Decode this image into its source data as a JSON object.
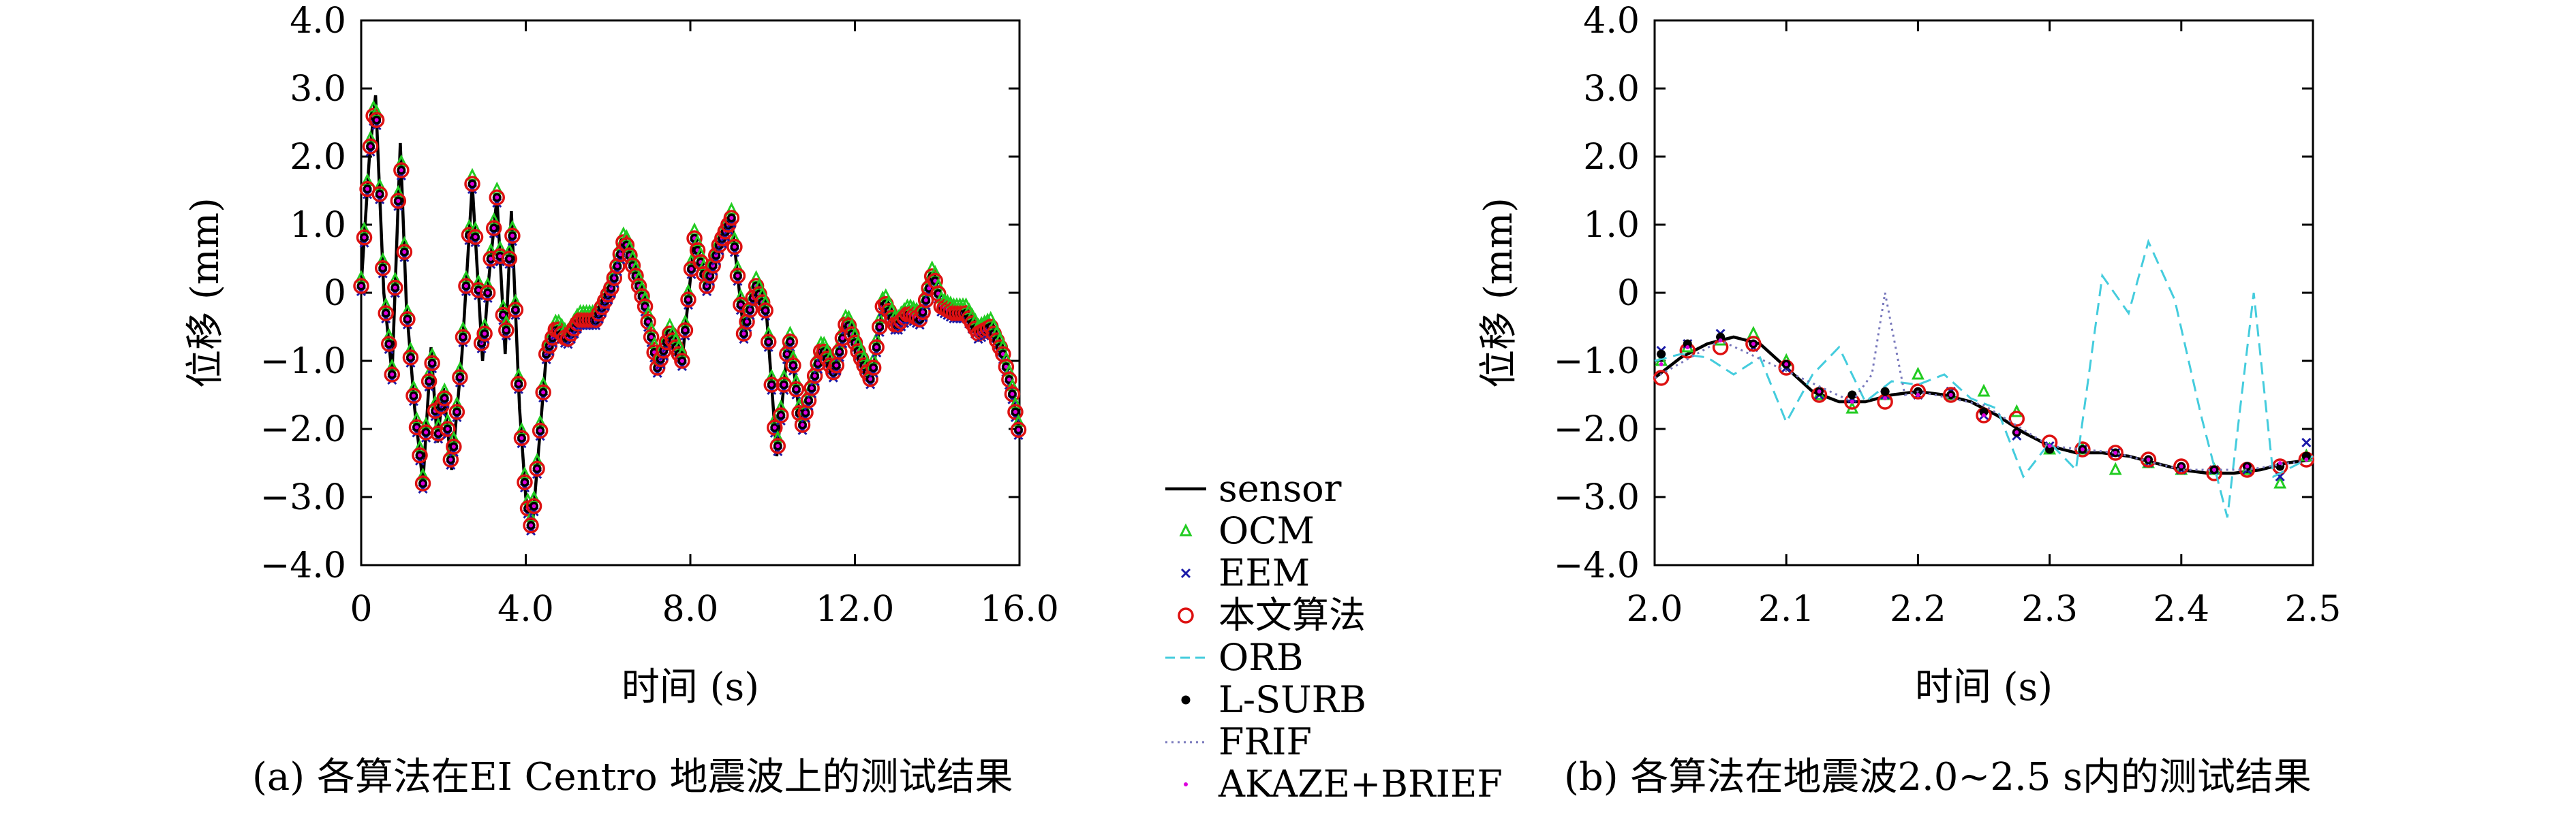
{
  "captions": {
    "a": "(a) 各算法在EI Centro 地震波上的测试结果",
    "b": "(b) 各算法在地震波2.0~2.5 s内的测试结果"
  },
  "legend": [
    {
      "label": "sensor",
      "style": "line",
      "color": "#000000"
    },
    {
      "label": "OCM",
      "style": "triangle",
      "color": "#22cc22"
    },
    {
      "label": "EEM",
      "style": "cross",
      "color": "#1a1aa8"
    },
    {
      "label": "本文算法",
      "style": "circle",
      "color": "#dd1111"
    },
    {
      "label": "ORB",
      "style": "dash",
      "color": "#44ccdd"
    },
    {
      "label": "L-SURB",
      "style": "dot",
      "color": "#000000"
    },
    {
      "label": "FRIF",
      "style": "dotted",
      "color": "#7777bb"
    },
    {
      "label": "AKAZE+BRIEF",
      "style": "smalldot",
      "color": "#dd00dd"
    }
  ],
  "chart_data": [
    {
      "type": "line",
      "panel": "a",
      "xlabel": "时间 (s)",
      "ylabel": "位移 (mm)",
      "xlim": [
        0,
        16
      ],
      "ylim": [
        -4,
        4
      ],
      "xticks": [
        "0",
        "4.0",
        "8.0",
        "12.0",
        "16.0"
      ],
      "xtick_values": [
        0,
        4,
        8,
        12,
        16
      ],
      "yticks": [
        "4.0",
        "3.0",
        "2.0",
        "1.0",
        "0",
        "−1.0",
        "−2.0",
        "−3.0",
        "−4.0"
      ],
      "ytick_values": [
        4,
        3,
        2,
        1,
        0,
        -1,
        -2,
        -3,
        -4
      ],
      "series": [
        {
          "name": "sensor",
          "x": [
            0,
            0.2,
            0.35,
            0.55,
            0.75,
            0.95,
            1.1,
            1.3,
            1.5,
            1.7,
            1.85,
            2.0,
            2.2,
            2.45,
            2.7,
            2.95,
            3.1,
            3.3,
            3.5,
            3.65,
            3.85,
            4.0,
            4.15,
            4.3,
            4.5,
            4.75,
            5.0,
            5.3,
            5.7,
            6.1,
            6.4,
            6.6,
            6.9,
            7.2,
            7.5,
            7.8,
            8.1,
            8.4,
            8.7,
            9.0,
            9.3,
            9.6,
            9.85,
            10.1,
            10.4,
            10.7,
            10.95,
            11.2,
            11.5,
            11.8,
            12.1,
            12.4,
            12.7,
            13.0,
            13.3,
            13.6,
            13.9,
            14.1,
            14.4,
            14.7,
            15.0,
            15.3,
            15.6,
            15.8,
            16.0
          ],
          "y": [
            0.1,
            2.0,
            2.9,
            0.0,
            -1.2,
            2.2,
            -0.2,
            -1.7,
            -2.8,
            -0.8,
            -2.2,
            -1.4,
            -2.6,
            -0.9,
            1.6,
            -1.0,
            0.2,
            1.4,
            -0.9,
            1.2,
            -1.7,
            -3.0,
            -3.5,
            -2.4,
            -0.9,
            -0.5,
            -0.7,
            -0.4,
            -0.4,
            0.1,
            0.8,
            0.4,
            -0.2,
            -1.1,
            -0.6,
            -1.0,
            0.8,
            0.1,
            0.7,
            1.1,
            -0.6,
            0.1,
            -0.3,
            -2.4,
            -0.6,
            -2.0,
            -1.4,
            -0.8,
            -1.2,
            -0.4,
            -0.9,
            -1.3,
            -0.1,
            -0.5,
            -0.3,
            -0.4,
            0.3,
            -0.2,
            -0.3,
            -0.3,
            -0.6,
            -0.5,
            -0.9,
            -1.4,
            -2.1
          ]
        }
      ]
    },
    {
      "type": "line",
      "panel": "b",
      "xlabel": "时间 (s)",
      "ylabel": "位移 (mm)",
      "xlim": [
        2.0,
        2.5
      ],
      "ylim": [
        -4,
        4
      ],
      "xticks": [
        "2.0",
        "2.1",
        "2.2",
        "2.3",
        "2.4",
        "2.5"
      ],
      "xtick_values": [
        2.0,
        2.1,
        2.2,
        2.3,
        2.4,
        2.5
      ],
      "yticks": [
        "4.0",
        "3.0",
        "2.0",
        "1.0",
        "0",
        "−1.0",
        "−2.0",
        "−3.0",
        "−4.0"
      ],
      "ytick_values": [
        4,
        3,
        2,
        1,
        0,
        -1,
        -2,
        -3,
        -4
      ],
      "series": [
        {
          "name": "sensor",
          "x": [
            2.0,
            2.02,
            2.04,
            2.06,
            2.08,
            2.1,
            2.12,
            2.14,
            2.16,
            2.18,
            2.2,
            2.22,
            2.24,
            2.26,
            2.28,
            2.3,
            2.32,
            2.34,
            2.36,
            2.38,
            2.4,
            2.42,
            2.44,
            2.46,
            2.48,
            2.5
          ],
          "y": [
            -1.25,
            -0.95,
            -0.75,
            -0.65,
            -0.75,
            -1.1,
            -1.45,
            -1.6,
            -1.6,
            -1.5,
            -1.45,
            -1.5,
            -1.6,
            -1.8,
            -2.05,
            -2.25,
            -2.35,
            -2.35,
            -2.4,
            -2.5,
            -2.6,
            -2.65,
            -2.65,
            -2.6,
            -2.5,
            -2.45
          ]
        },
        {
          "name": "OCM",
          "x": [
            2.005,
            2.025,
            2.05,
            2.075,
            2.1,
            2.125,
            2.15,
            2.175,
            2.2,
            2.225,
            2.25,
            2.275,
            2.3,
            2.325,
            2.35,
            2.375,
            2.4,
            2.425,
            2.45,
            2.475,
            2.495
          ],
          "y": [
            -1.0,
            -0.8,
            -0.7,
            -0.6,
            -1.0,
            -1.5,
            -1.7,
            -1.5,
            -1.2,
            -1.5,
            -1.45,
            -1.75,
            -2.3,
            -2.3,
            -2.6,
            -2.5,
            -2.6,
            -2.6,
            -2.6,
            -2.8,
            -2.4
          ]
        },
        {
          "name": "EEM",
          "x": [
            2.005,
            2.025,
            2.05,
            2.075,
            2.1,
            2.125,
            2.15,
            2.175,
            2.2,
            2.225,
            2.25,
            2.275,
            2.3,
            2.325,
            2.35,
            2.375,
            2.4,
            2.425,
            2.45,
            2.475,
            2.495
          ],
          "y": [
            -0.85,
            -0.75,
            -0.6,
            -0.8,
            -1.1,
            -1.5,
            -1.55,
            -1.5,
            -1.5,
            -1.45,
            -1.8,
            -2.1,
            -2.25,
            -2.3,
            -2.35,
            -2.5,
            -2.6,
            -2.6,
            -2.6,
            -2.7,
            -2.2
          ]
        },
        {
          "name": "本文算法",
          "x": [
            2.005,
            2.025,
            2.05,
            2.075,
            2.1,
            2.125,
            2.15,
            2.175,
            2.2,
            2.225,
            2.25,
            2.275,
            2.3,
            2.325,
            2.35,
            2.375,
            2.4,
            2.425,
            2.45,
            2.475,
            2.495
          ],
          "y": [
            -1.25,
            -0.85,
            -0.8,
            -0.75,
            -1.1,
            -1.5,
            -1.6,
            -1.6,
            -1.45,
            -1.5,
            -1.8,
            -1.85,
            -2.2,
            -2.3,
            -2.35,
            -2.45,
            -2.55,
            -2.65,
            -2.6,
            -2.55,
            -2.45
          ]
        },
        {
          "name": "ORB",
          "x": [
            2.0,
            2.02,
            2.04,
            2.06,
            2.08,
            2.1,
            2.12,
            2.14,
            2.16,
            2.18,
            2.2,
            2.22,
            2.24,
            2.26,
            2.28,
            2.3,
            2.32,
            2.34,
            2.36,
            2.375,
            2.395,
            2.415,
            2.435,
            2.455,
            2.47,
            2.5
          ],
          "y": [
            -1.0,
            -0.9,
            -0.95,
            -1.2,
            -0.95,
            -1.9,
            -1.2,
            -0.8,
            -1.6,
            -1.3,
            -1.35,
            -1.2,
            -1.55,
            -1.7,
            -2.7,
            -2.2,
            -2.6,
            0.25,
            -0.3,
            0.75,
            -0.1,
            -1.8,
            -3.3,
            0.0,
            -2.7,
            -2.4
          ]
        },
        {
          "name": "L-SURB",
          "x": [
            2.005,
            2.025,
            2.05,
            2.075,
            2.1,
            2.125,
            2.15,
            2.175,
            2.2,
            2.225,
            2.25,
            2.275,
            2.3,
            2.325,
            2.35,
            2.375,
            2.4,
            2.425,
            2.45,
            2.475,
            2.495
          ],
          "y": [
            -0.9,
            -0.75,
            -0.65,
            -0.75,
            -1.05,
            -1.45,
            -1.5,
            -1.45,
            -1.45,
            -1.5,
            -1.75,
            -2.05,
            -2.3,
            -2.3,
            -2.35,
            -2.45,
            -2.55,
            -2.6,
            -2.55,
            -2.55,
            -2.4
          ]
        },
        {
          "name": "FRIF",
          "x": [
            2.0,
            2.05,
            2.1,
            2.15,
            2.165,
            2.175,
            2.19,
            2.2,
            2.25,
            2.3,
            2.35,
            2.4,
            2.45,
            2.5
          ],
          "y": [
            -1.25,
            -0.7,
            -1.15,
            -1.6,
            -1.2,
            0.0,
            -1.5,
            -1.45,
            -1.65,
            -2.25,
            -2.35,
            -2.6,
            -2.6,
            -2.45
          ]
        },
        {
          "name": "AKAZE+BRIEF",
          "x": [
            2.005,
            2.025,
            2.05,
            2.075,
            2.1,
            2.125,
            2.15,
            2.175,
            2.2,
            2.225,
            2.25,
            2.275,
            2.3,
            2.325,
            2.35,
            2.375,
            2.4,
            2.425,
            2.45,
            2.475,
            2.495
          ],
          "y": [
            -1.05,
            -0.8,
            -0.7,
            -0.75,
            -1.05,
            -1.45,
            -1.6,
            -1.55,
            -1.5,
            -1.5,
            -1.8,
            -2.05,
            -2.25,
            -2.3,
            -2.35,
            -2.45,
            -2.55,
            -2.6,
            -2.55,
            -2.5,
            -2.45
          ]
        }
      ]
    }
  ]
}
